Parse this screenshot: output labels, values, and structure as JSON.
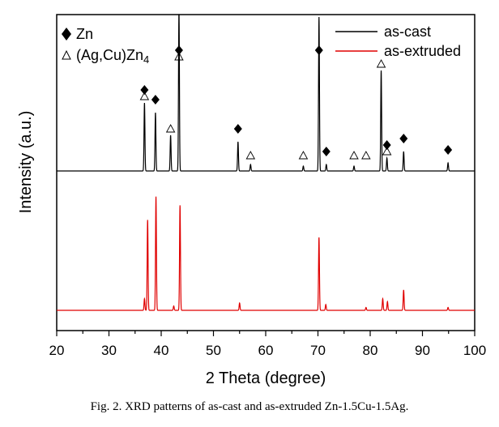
{
  "caption": "Fig. 2. XRD patterns of as-cast and as-extruded Zn-1.5Cu-1.5Ag.",
  "chart_data": {
    "type": "line",
    "xlabel": "2 Theta (degree)",
    "ylabel": "Intensity (a.u.)",
    "xlim": [
      20,
      100
    ],
    "x_ticks": [
      20,
      30,
      40,
      50,
      60,
      70,
      80,
      90,
      100
    ],
    "y_ticks_shown": false,
    "legend_position": "top-right",
    "colors": {
      "as_cast": "#000000",
      "as_extruded": "#e00000"
    },
    "series": [
      {
        "name": "as-cast",
        "color": "#000000",
        "baseline": 0.02,
        "peaks": [
          [
            36.8,
            0.42
          ],
          [
            38.9,
            0.36
          ],
          [
            41.8,
            0.22
          ],
          [
            43.4,
            1.0
          ],
          [
            54.7,
            0.18
          ],
          [
            57.1,
            0.04
          ],
          [
            67.2,
            0.03
          ],
          [
            70.2,
            0.95
          ],
          [
            71.6,
            0.04
          ],
          [
            76.9,
            0.03
          ],
          [
            82.1,
            0.62
          ],
          [
            83.2,
            0.08
          ],
          [
            86.4,
            0.12
          ],
          [
            94.9,
            0.05
          ]
        ]
      },
      {
        "name": "as-extruded",
        "color": "#e00000",
        "baseline": 0.02,
        "peaks": [
          [
            36.8,
            0.08
          ],
          [
            37.4,
            0.62
          ],
          [
            39.0,
            0.78
          ],
          [
            42.4,
            0.03
          ],
          [
            43.6,
            0.72
          ],
          [
            55.0,
            0.05
          ],
          [
            70.2,
            0.5
          ],
          [
            71.5,
            0.04
          ],
          [
            79.2,
            0.02
          ],
          [
            82.4,
            0.08
          ],
          [
            83.3,
            0.06
          ],
          [
            86.4,
            0.14
          ],
          [
            94.9,
            0.02
          ]
        ]
      }
    ],
    "legend": [
      {
        "label": "as-cast",
        "color": "#000000"
      },
      {
        "label": "as-extruded",
        "color": "#e00000"
      }
    ],
    "phase_legend": [
      {
        "symbol": "diamond",
        "label": "Zn"
      },
      {
        "symbol": "triangle",
        "label": "(Ag,Cu)Zn4"
      }
    ],
    "markers": {
      "zn_diamonds": [
        36.8,
        38.9,
        43.4,
        54.7,
        70.2,
        71.6,
        83.2,
        86.4,
        94.9
      ],
      "agcuzn4_triangles": [
        36.8,
        41.8,
        43.4,
        57.1,
        67.2,
        76.9,
        79.2,
        82.1,
        83.2
      ]
    }
  }
}
